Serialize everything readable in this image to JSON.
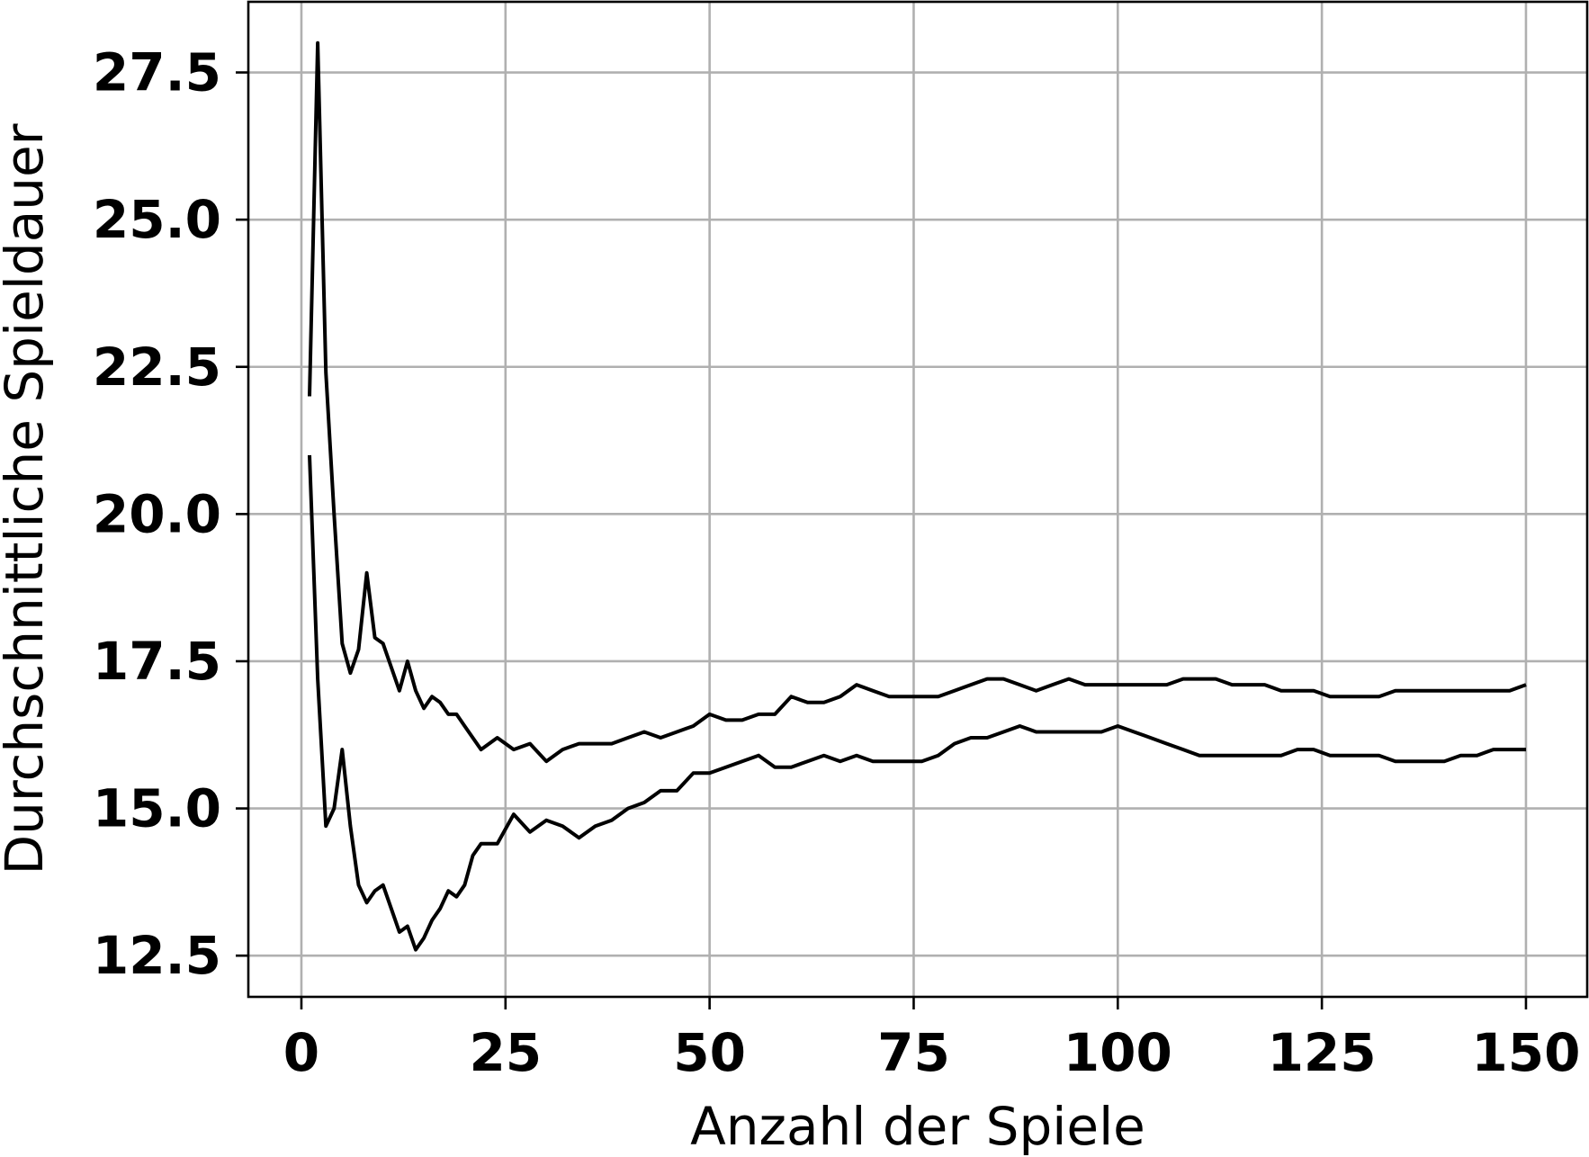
{
  "chart_data": {
    "type": "line",
    "title": "",
    "xlabel": "Anzahl der Spiele",
    "ylabel": "Durchschnittliche Spieldauer",
    "xlim": [
      -6.5,
      157.5
    ],
    "ylim": [
      11.8,
      28.7
    ],
    "xticks": [
      0,
      25,
      50,
      75,
      100,
      125,
      150
    ],
    "yticks": [
      12.5,
      15.0,
      17.5,
      20.0,
      22.5,
      25.0,
      27.5
    ],
    "xtick_labels": [
      "0",
      "25",
      "50",
      "75",
      "100",
      "125",
      "150"
    ],
    "ytick_labels": [
      "12.5",
      "15.0",
      "17.5",
      "20.0",
      "22.5",
      "25.0",
      "27.5"
    ],
    "grid": true,
    "line_color": "#000000",
    "series": [
      {
        "x": [
          1,
          2,
          3,
          4,
          5,
          6,
          7,
          8,
          9,
          10,
          11,
          12,
          13,
          14,
          15,
          16,
          17,
          18,
          19,
          20,
          22,
          24,
          26,
          28,
          30,
          32,
          34,
          36,
          38,
          40,
          42,
          44,
          46,
          48,
          50,
          52,
          54,
          56,
          58,
          60,
          62,
          64,
          66,
          68,
          70,
          72,
          74,
          76,
          78,
          80,
          82,
          84,
          86,
          88,
          90,
          92,
          94,
          96,
          98,
          100,
          102,
          104,
          106,
          108,
          110,
          112,
          114,
          116,
          118,
          120,
          122,
          124,
          126,
          128,
          130,
          132,
          134,
          136,
          138,
          140,
          142,
          144,
          146,
          148,
          150
        ],
        "values": [
          22.0,
          28.0,
          22.4,
          20.0,
          17.8,
          17.3,
          17.7,
          19.0,
          17.9,
          17.8,
          17.4,
          17.0,
          17.5,
          17.0,
          16.7,
          16.9,
          16.8,
          16.6,
          16.6,
          16.4,
          16.0,
          16.2,
          16.0,
          16.1,
          15.8,
          16.0,
          16.1,
          16.1,
          16.1,
          16.2,
          16.3,
          16.2,
          16.3,
          16.4,
          16.6,
          16.5,
          16.5,
          16.6,
          16.6,
          16.9,
          16.8,
          16.8,
          16.9,
          17.1,
          17.0,
          16.9,
          16.9,
          16.9,
          16.9,
          17.0,
          17.1,
          17.2,
          17.2,
          17.1,
          17.0,
          17.1,
          17.2,
          17.1,
          17.1,
          17.1,
          17.1,
          17.1,
          17.1,
          17.2,
          17.2,
          17.2,
          17.1,
          17.1,
          17.1,
          17.0,
          17.0,
          17.0,
          16.9,
          16.9,
          16.9,
          16.9,
          17.0,
          17.0,
          17.0,
          17.0,
          17.0,
          17.0,
          17.0,
          17.0,
          17.1
        ]
      },
      {
        "x": [
          1,
          2,
          3,
          4,
          5,
          6,
          7,
          8,
          9,
          10,
          11,
          12,
          13,
          14,
          15,
          16,
          17,
          18,
          19,
          20,
          21,
          22,
          24,
          26,
          28,
          30,
          32,
          34,
          36,
          38,
          40,
          42,
          44,
          46,
          48,
          50,
          52,
          54,
          56,
          58,
          60,
          62,
          64,
          66,
          68,
          70,
          72,
          74,
          76,
          78,
          80,
          82,
          84,
          86,
          88,
          90,
          92,
          94,
          96,
          98,
          100,
          102,
          104,
          106,
          108,
          110,
          112,
          114,
          116,
          118,
          120,
          122,
          124,
          126,
          128,
          130,
          132,
          134,
          136,
          138,
          140,
          142,
          144,
          146,
          148,
          150
        ],
        "values": [
          21.0,
          17.2,
          14.7,
          15.0,
          16.0,
          14.7,
          13.7,
          13.4,
          13.6,
          13.7,
          13.3,
          12.9,
          13.0,
          12.6,
          12.8,
          13.1,
          13.3,
          13.6,
          13.5,
          13.7,
          14.2,
          14.4,
          14.4,
          14.9,
          14.6,
          14.8,
          14.7,
          14.5,
          14.7,
          14.8,
          15.0,
          15.1,
          15.3,
          15.3,
          15.6,
          15.6,
          15.7,
          15.8,
          15.9,
          15.7,
          15.7,
          15.8,
          15.9,
          15.8,
          15.9,
          15.8,
          15.8,
          15.8,
          15.8,
          15.9,
          16.1,
          16.2,
          16.2,
          16.3,
          16.4,
          16.3,
          16.3,
          16.3,
          16.3,
          16.3,
          16.4,
          16.3,
          16.2,
          16.1,
          16.0,
          15.9,
          15.9,
          15.9,
          15.9,
          15.9,
          15.9,
          16.0,
          16.0,
          15.9,
          15.9,
          15.9,
          15.9,
          15.8,
          15.8,
          15.8,
          15.8,
          15.9,
          15.9,
          16.0,
          16.0,
          16.0
        ]
      }
    ]
  }
}
